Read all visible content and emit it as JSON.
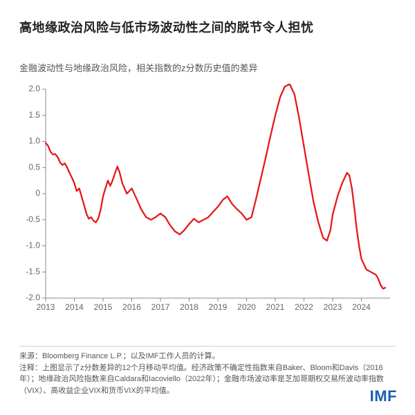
{
  "title": "高地缘政治风险与低市场波动性之间的脱节令人担忧",
  "subtitle": "金融波动性与地缘政治风险，相关指数的z分数历史值的差异",
  "chart": {
    "type": "line",
    "background_color": "#ffffff",
    "line_color": "#e61919",
    "line_width": 2.3,
    "axis_color": "#888888",
    "tick_label_color": "#666666",
    "tick_fontsize": 12,
    "y": {
      "min": -2.0,
      "max": 2.0,
      "ticks": [
        -2.0,
        -1.5,
        -1.0,
        -0.5,
        0,
        0.5,
        1.0,
        1.5,
        2.0
      ],
      "tick_labels": [
        "-2.0",
        "-1.5",
        "-1.0",
        "-0.5",
        "0",
        "0.5",
        "1.0",
        "1.5",
        "2.0"
      ]
    },
    "x": {
      "min": 2013,
      "max": 2025,
      "ticks": [
        2013,
        2014,
        2015,
        2016,
        2017,
        2018,
        2019,
        2020,
        2021,
        2022,
        2023,
        2024
      ],
      "tick_labels": [
        "2013",
        "2014",
        "2015",
        "2016",
        "2017",
        "2018",
        "2019",
        "2020",
        "2021",
        "2022",
        "2023",
        "2024"
      ]
    },
    "series": [
      {
        "x": 2013.0,
        "y": 0.97
      },
      {
        "x": 2013.08,
        "y": 0.92
      },
      {
        "x": 2013.17,
        "y": 0.8
      },
      {
        "x": 2013.25,
        "y": 0.75
      },
      {
        "x": 2013.33,
        "y": 0.76
      },
      {
        "x": 2013.42,
        "y": 0.7
      },
      {
        "x": 2013.5,
        "y": 0.6
      },
      {
        "x": 2013.58,
        "y": 0.55
      },
      {
        "x": 2013.67,
        "y": 0.58
      },
      {
        "x": 2013.75,
        "y": 0.5
      },
      {
        "x": 2013.83,
        "y": 0.4
      },
      {
        "x": 2013.92,
        "y": 0.3
      },
      {
        "x": 2014.0,
        "y": 0.2
      },
      {
        "x": 2014.08,
        "y": 0.05
      },
      {
        "x": 2014.17,
        "y": 0.1
      },
      {
        "x": 2014.25,
        "y": -0.05
      },
      {
        "x": 2014.33,
        "y": -0.2
      },
      {
        "x": 2014.42,
        "y": -0.38
      },
      {
        "x": 2014.5,
        "y": -0.48
      },
      {
        "x": 2014.58,
        "y": -0.45
      },
      {
        "x": 2014.67,
        "y": -0.52
      },
      {
        "x": 2014.75,
        "y": -0.55
      },
      {
        "x": 2014.83,
        "y": -0.48
      },
      {
        "x": 2014.92,
        "y": -0.3
      },
      {
        "x": 2015.0,
        "y": -0.05
      },
      {
        "x": 2015.08,
        "y": 0.1
      },
      {
        "x": 2015.17,
        "y": 0.25
      },
      {
        "x": 2015.25,
        "y": 0.15
      },
      {
        "x": 2015.33,
        "y": 0.25
      },
      {
        "x": 2015.42,
        "y": 0.4
      },
      {
        "x": 2015.5,
        "y": 0.52
      },
      {
        "x": 2015.58,
        "y": 0.4
      },
      {
        "x": 2015.67,
        "y": 0.2
      },
      {
        "x": 2015.83,
        "y": 0.0
      },
      {
        "x": 2016.0,
        "y": 0.1
      },
      {
        "x": 2016.17,
        "y": -0.1
      },
      {
        "x": 2016.33,
        "y": -0.3
      },
      {
        "x": 2016.5,
        "y": -0.45
      },
      {
        "x": 2016.67,
        "y": -0.5
      },
      {
        "x": 2016.83,
        "y": -0.45
      },
      {
        "x": 2017.0,
        "y": -0.38
      },
      {
        "x": 2017.17,
        "y": -0.45
      },
      {
        "x": 2017.33,
        "y": -0.6
      },
      {
        "x": 2017.5,
        "y": -0.72
      },
      {
        "x": 2017.67,
        "y": -0.78
      },
      {
        "x": 2017.83,
        "y": -0.7
      },
      {
        "x": 2018.0,
        "y": -0.58
      },
      {
        "x": 2018.17,
        "y": -0.48
      },
      {
        "x": 2018.33,
        "y": -0.55
      },
      {
        "x": 2018.5,
        "y": -0.5
      },
      {
        "x": 2018.67,
        "y": -0.45
      },
      {
        "x": 2018.83,
        "y": -0.35
      },
      {
        "x": 2019.0,
        "y": -0.25
      },
      {
        "x": 2019.17,
        "y": -0.12
      },
      {
        "x": 2019.33,
        "y": -0.05
      },
      {
        "x": 2019.5,
        "y": -0.2
      },
      {
        "x": 2019.67,
        "y": -0.3
      },
      {
        "x": 2019.83,
        "y": -0.38
      },
      {
        "x": 2020.0,
        "y": -0.5
      },
      {
        "x": 2020.17,
        "y": -0.45
      },
      {
        "x": 2020.33,
        "y": -0.1
      },
      {
        "x": 2020.5,
        "y": 0.3
      },
      {
        "x": 2020.67,
        "y": 0.7
      },
      {
        "x": 2020.83,
        "y": 1.1
      },
      {
        "x": 2021.0,
        "y": 1.5
      },
      {
        "x": 2021.17,
        "y": 1.85
      },
      {
        "x": 2021.33,
        "y": 2.05
      },
      {
        "x": 2021.5,
        "y": 2.1
      },
      {
        "x": 2021.67,
        "y": 1.9
      },
      {
        "x": 2021.83,
        "y": 1.45
      },
      {
        "x": 2022.0,
        "y": 0.9
      },
      {
        "x": 2022.17,
        "y": 0.35
      },
      {
        "x": 2022.33,
        "y": -0.15
      },
      {
        "x": 2022.5,
        "y": -0.55
      },
      {
        "x": 2022.67,
        "y": -0.85
      },
      {
        "x": 2022.8,
        "y": -0.9
      },
      {
        "x": 2022.92,
        "y": -0.7
      },
      {
        "x": 2023.0,
        "y": -0.4
      },
      {
        "x": 2023.17,
        "y": -0.05
      },
      {
        "x": 2023.33,
        "y": 0.2
      },
      {
        "x": 2023.5,
        "y": 0.4
      },
      {
        "x": 2023.58,
        "y": 0.35
      },
      {
        "x": 2023.67,
        "y": 0.1
      },
      {
        "x": 2023.75,
        "y": -0.25
      },
      {
        "x": 2023.83,
        "y": -0.65
      },
      {
        "x": 2023.92,
        "y": -1.0
      },
      {
        "x": 2024.0,
        "y": -1.25
      },
      {
        "x": 2024.17,
        "y": -1.45
      },
      {
        "x": 2024.33,
        "y": -1.5
      },
      {
        "x": 2024.5,
        "y": -1.55
      },
      {
        "x": 2024.58,
        "y": -1.62
      },
      {
        "x": 2024.67,
        "y": -1.75
      },
      {
        "x": 2024.75,
        "y": -1.82
      },
      {
        "x": 2024.83,
        "y": -1.8
      }
    ]
  },
  "footer": {
    "source": "来源：Bloomberg Finance L.P.；以及IMF工作人员的计算。",
    "note": "注释：上图显示了z分数差异的12个月移动平均值。经济政策不确定性指数来自Baker、Bloom和Davis（2016年）；地缘政治风险指数来自Caldara和Iacoviello（2022年）；金融市场波动率是芝加哥期权交易所波动率指数（VIX）、高收益企业VIX和货币VIX的平均值。"
  },
  "logo_text": "IMF",
  "logo_color": "#1a5fb4"
}
